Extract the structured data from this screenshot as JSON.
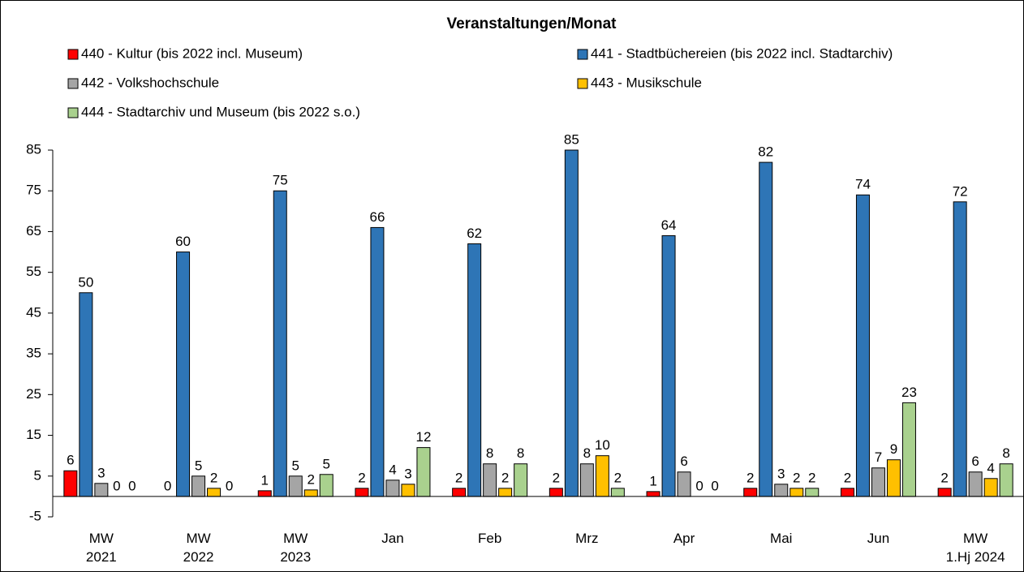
{
  "chart_data": {
    "type": "bar",
    "title": "Veranstaltungen/Monat",
    "categories": [
      "MW\n2021",
      "MW\n2022",
      "MW\n2023",
      "Jan",
      "Feb",
      "Mrz",
      "Apr",
      "Mai",
      "Jun",
      "MW\n1.Hj 2024"
    ],
    "series": [
      {
        "name": "440 - Kultur (bis 2022 incl. Museum)",
        "color": "#ff0000",
        "values": [
          6.3,
          0,
          1.4,
          2,
          2,
          2,
          1.2,
          2,
          2,
          2
        ],
        "value_labels": [
          "6",
          "0",
          "1",
          "2",
          "2",
          "2",
          "1",
          "2",
          "2",
          "2"
        ]
      },
      {
        "name": "441 - Stadtbüchereien  (bis 2022 incl. Stadtarchiv)",
        "color": "#2e75b6",
        "values": [
          50,
          60,
          75,
          66,
          62,
          85,
          64,
          82,
          74,
          72.3
        ],
        "value_labels": [
          "50",
          "60",
          "75",
          "66",
          "62",
          "85",
          "64",
          "82",
          "74",
          "72"
        ]
      },
      {
        "name": "442 - Volkshochschule",
        "color": "#a5a5a5",
        "values": [
          3.2,
          5,
          5,
          4,
          8,
          8,
          6,
          3,
          7,
          6
        ],
        "value_labels": [
          "3",
          "5",
          "5",
          "4",
          "8",
          "8",
          "6",
          "3",
          "7",
          "6"
        ]
      },
      {
        "name": "443 - Musikschule",
        "color": "#ffc000",
        "values": [
          0,
          2,
          1.6,
          3,
          2,
          10,
          0,
          2,
          9,
          4.4
        ],
        "value_labels": [
          "0",
          "2",
          "2",
          "3",
          "2",
          "10",
          "0",
          "2",
          "9",
          "4"
        ]
      },
      {
        "name": "444 - Stadtarchiv und Museum (bis 2022 s.o.)",
        "color": "#a9d18e",
        "values": [
          0,
          0,
          5.4,
          12,
          8,
          2,
          0,
          2,
          23,
          8
        ],
        "value_labels": [
          "0",
          "0",
          "5",
          "12",
          "8",
          "2",
          "0",
          "2",
          "23",
          "8"
        ]
      }
    ],
    "ylim": [
      -5,
      85
    ],
    "yticks": [
      -5,
      5,
      15,
      25,
      35,
      45,
      55,
      65,
      75,
      85
    ],
    "grid": false,
    "legend": "top"
  }
}
